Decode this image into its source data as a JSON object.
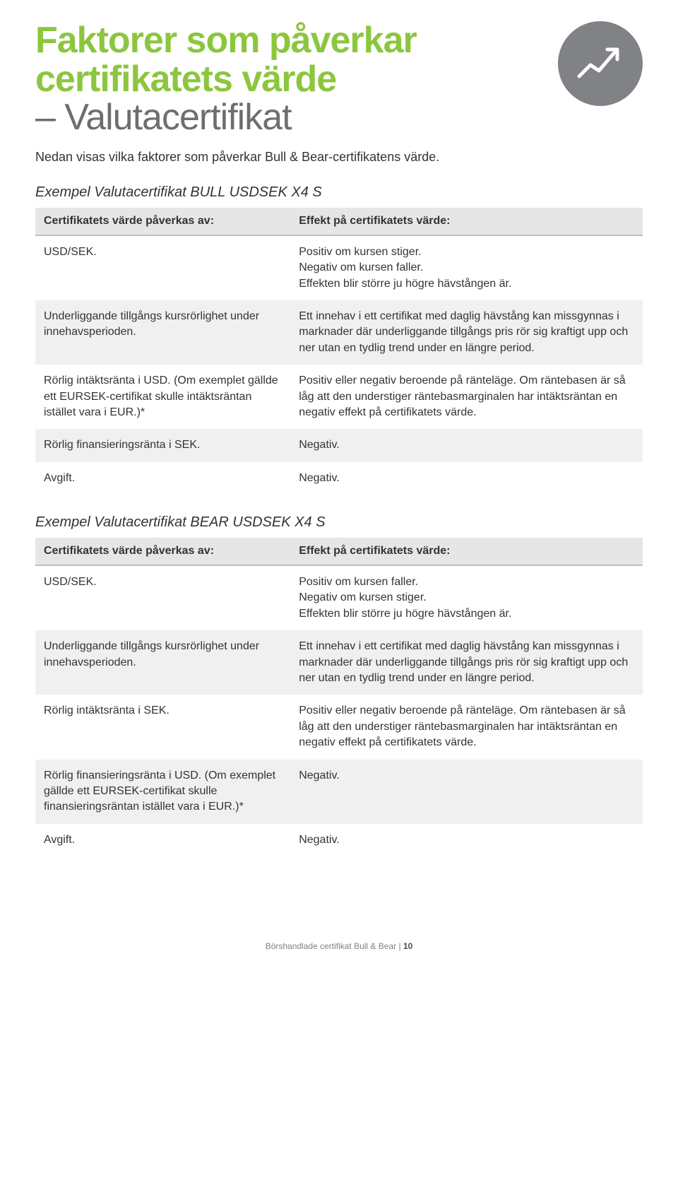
{
  "header": {
    "title_line1": "Faktorer som påverkar",
    "title_line2": "certifikatets värde",
    "title_line3": "– Valutacertifikat",
    "subtitle": "Nedan visas vilka faktorer som påverkar Bull & Bear-certifikatens värde.",
    "icon_name": "trend-up-icon",
    "icon_bg": "#808285",
    "icon_stroke": "#ffffff"
  },
  "styling": {
    "title_green_color": "#8cc63f",
    "title_gray_color": "#6d6e71",
    "title_fontsize": 52,
    "subtitle_fontsize": 18,
    "example_title_fontsize": 20,
    "th_bg": "#e6e6e6",
    "th_border": "#bfbfbf",
    "row_odd_bg": "#ffffff",
    "row_even_bg": "#f0f0f0",
    "body_fontsize": 16,
    "page_bg": "#ffffff"
  },
  "table_bull": {
    "title": "Exempel Valutacertifikat BULL USDSEK X4 S",
    "col1": "Certifikatets värde påverkas av:",
    "col2": "Effekt på certifikatets värde:",
    "rows": [
      {
        "factor": "USD/SEK.",
        "effect": "Positiv om kursen stiger.\nNegativ om kursen faller.\nEffekten blir större ju högre hävstången är."
      },
      {
        "factor": "Underliggande tillgångs kursrörlighet under innehavsperioden.",
        "effect": "Ett innehav i ett certifikat med daglig hävstång kan missgynnas i marknader där underliggande tillgångs pris rör sig kraftigt upp och ner utan en tydlig trend under en längre period."
      },
      {
        "factor": "Rörlig intäktsränta i USD. (Om exemplet gällde ett EURSEK-certifikat skulle intäktsräntan istället vara i EUR.)*",
        "effect": "Positiv eller negativ beroende på ränteläge. Om räntebasen är så låg att den understiger räntebasmarginalen har intäktsräntan en negativ effekt på certifikatets värde."
      },
      {
        "factor": "Rörlig finansieringsränta i SEK.",
        "effect": "Negativ."
      },
      {
        "factor": "Avgift.",
        "effect": "Negativ."
      }
    ]
  },
  "table_bear": {
    "title": "Exempel Valutacertifikat BEAR USDSEK X4 S",
    "col1": "Certifikatets värde påverkas av:",
    "col2": "Effekt på certifikatets värde:",
    "rows": [
      {
        "factor": "USD/SEK.",
        "effect": "Positiv om kursen faller.\nNegativ om kursen stiger.\nEffekten blir större ju högre hävstången är."
      },
      {
        "factor": "Underliggande tillgångs kursrörlighet under innehavsperioden.",
        "effect": "Ett innehav i ett certifikat med daglig hävstång kan missgynnas i marknader där underliggande tillgångs pris rör sig kraftigt upp och ner utan en tydlig trend under en längre period."
      },
      {
        "factor": "Rörlig intäktsränta i SEK.",
        "effect": "Positiv eller negativ beroende på ränteläge. Om räntebasen är så låg att den understiger räntebasmarginalen har intäktsräntan en negativ effekt på certifikatets värde."
      },
      {
        "factor": "Rörlig finansieringsränta i USD. (Om exemplet gällde ett EURSEK-certifikat skulle finansieringsräntan istället vara i EUR.)*",
        "effect": "Negativ."
      },
      {
        "factor": "Avgift.",
        "effect": "Negativ."
      }
    ]
  },
  "footer": {
    "text": "Börshandlade certifikat Bull & Bear",
    "sep": "|",
    "page": "10"
  }
}
